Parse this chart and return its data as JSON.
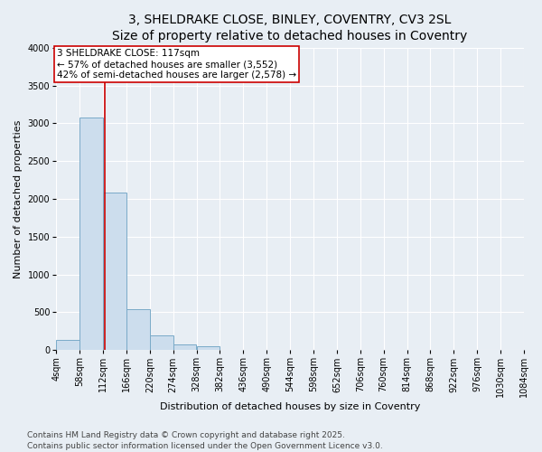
{
  "title_line1": "3, SHELDRAKE CLOSE, BINLEY, COVENTRY, CV3 2SL",
  "title_line2": "Size of property relative to detached houses in Coventry",
  "xlabel": "Distribution of detached houses by size in Coventry",
  "ylabel": "Number of detached properties",
  "bins_left": [
    4,
    58,
    112,
    166,
    220,
    274,
    328,
    382,
    436,
    490,
    544,
    598,
    652,
    706,
    760,
    814,
    868,
    922,
    976,
    1030,
    1084
  ],
  "bar_heights": [
    130,
    3080,
    2080,
    540,
    200,
    80,
    50,
    0,
    0,
    0,
    0,
    0,
    0,
    0,
    0,
    0,
    0,
    0,
    0,
    0
  ],
  "bar_color": "#ccdded",
  "bar_edgecolor": "#7aaac8",
  "property_size": 117,
  "vertical_line_color": "#cc0000",
  "annotation_text": "3 SHELDRAKE CLOSE: 117sqm\n← 57% of detached houses are smaller (3,552)\n42% of semi-detached houses are larger (2,578) →",
  "annotation_box_facecolor": "#ffffff",
  "annotation_box_edgecolor": "#cc0000",
  "ylim": [
    0,
    4000
  ],
  "yticks": [
    0,
    500,
    1000,
    1500,
    2000,
    2500,
    3000,
    3500,
    4000
  ],
  "xlim_left": 4,
  "xlim_right": 1084,
  "background_color": "#e8eef4",
  "plot_background": "#e8eef4",
  "footer_line1": "Contains HM Land Registry data © Crown copyright and database right 2025.",
  "footer_line2": "Contains public sector information licensed under the Open Government Licence v3.0.",
  "title_fontsize": 10,
  "axis_label_fontsize": 8,
  "tick_fontsize": 7,
  "annotation_fontsize": 7.5,
  "footer_fontsize": 6.5
}
